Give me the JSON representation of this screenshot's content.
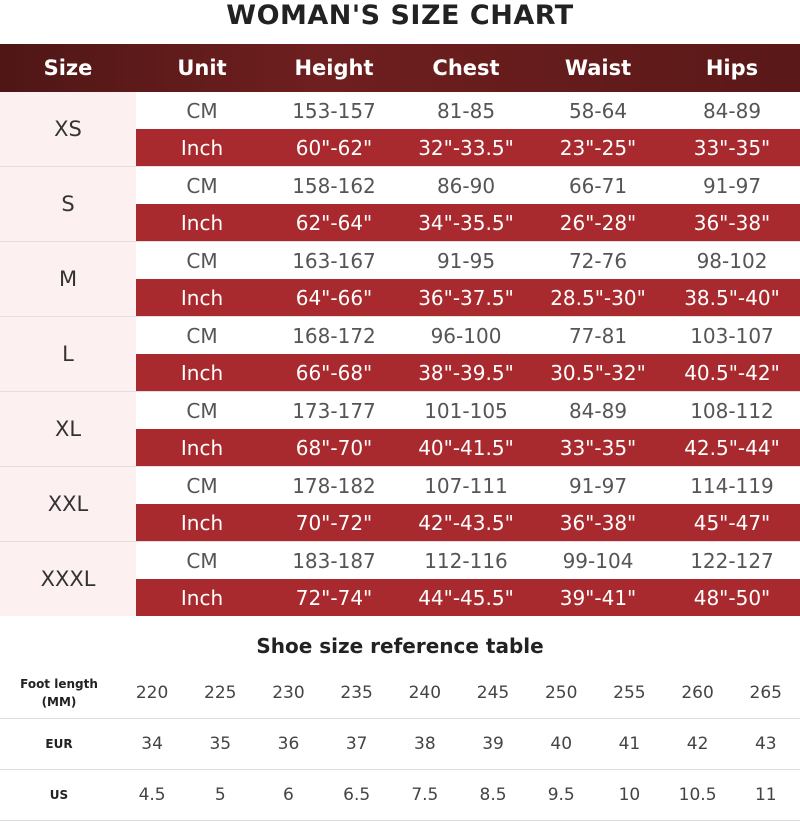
{
  "title": "WOMAN'S SIZE CHART",
  "size_chart": {
    "headers": [
      "Size",
      "Unit",
      "Height",
      "Chest",
      "Waist",
      "Hips"
    ],
    "rows": [
      {
        "size": "XS",
        "cm": [
          "CM",
          "153-157",
          "81-85",
          "58-64",
          "84-89"
        ],
        "inch": [
          "Inch",
          "60\"-62\"",
          "32\"-33.5\"",
          "23\"-25\"",
          "33\"-35\""
        ]
      },
      {
        "size": "S",
        "cm": [
          "CM",
          "158-162",
          "86-90",
          "66-71",
          "91-97"
        ],
        "inch": [
          "Inch",
          "62\"-64\"",
          "34\"-35.5\"",
          "26\"-28\"",
          "36\"-38\""
        ]
      },
      {
        "size": "M",
        "cm": [
          "CM",
          "163-167",
          "91-95",
          "72-76",
          "98-102"
        ],
        "inch": [
          "Inch",
          "64\"-66\"",
          "36\"-37.5\"",
          "28.5\"-30\"",
          "38.5\"-40\""
        ]
      },
      {
        "size": "L",
        "cm": [
          "CM",
          "168-172",
          "96-100",
          "77-81",
          "103-107"
        ],
        "inch": [
          "Inch",
          "66\"-68\"",
          "38\"-39.5\"",
          "30.5\"-32\"",
          "40.5\"-42\""
        ]
      },
      {
        "size": "XL",
        "cm": [
          "CM",
          "173-177",
          "101-105",
          "84-89",
          "108-112"
        ],
        "inch": [
          "Inch",
          "68\"-70\"",
          "40\"-41.5\"",
          "33\"-35\"",
          "42.5\"-44\""
        ]
      },
      {
        "size": "XXL",
        "cm": [
          "CM",
          "178-182",
          "107-111",
          "91-97",
          "114-119"
        ],
        "inch": [
          "Inch",
          "70\"-72\"",
          "42\"-43.5\"",
          "36\"-38\"",
          "45\"-47\""
        ]
      },
      {
        "size": "XXXL",
        "cm": [
          "CM",
          "183-187",
          "112-116",
          "99-104",
          "122-127"
        ],
        "inch": [
          "Inch",
          "72\"-74\"",
          "44\"-45.5\"",
          "39\"-41\"",
          "48\"-50\""
        ]
      }
    ]
  },
  "shoe_table": {
    "title": "Shoe size reference table",
    "rows": [
      {
        "label_line1": "Foot length",
        "label_line2": "(MM)",
        "values": [
          "220",
          "225",
          "230",
          "235",
          "240",
          "245",
          "250",
          "255",
          "260",
          "265"
        ]
      },
      {
        "label_line1": "EUR",
        "label_line2": "",
        "values": [
          "34",
          "35",
          "36",
          "37",
          "38",
          "39",
          "40",
          "41",
          "42",
          "43"
        ]
      },
      {
        "label_line1": "US",
        "label_line2": "",
        "values": [
          "4.5",
          "5",
          "6",
          "6.5",
          "7.5",
          "8.5",
          "9.5",
          "10",
          "10.5",
          "11"
        ]
      }
    ]
  },
  "colors": {
    "header_bg": "#5a1818",
    "inch_row_bg": "#a92a2e",
    "size_cell_bg": "#fdf0f1"
  }
}
